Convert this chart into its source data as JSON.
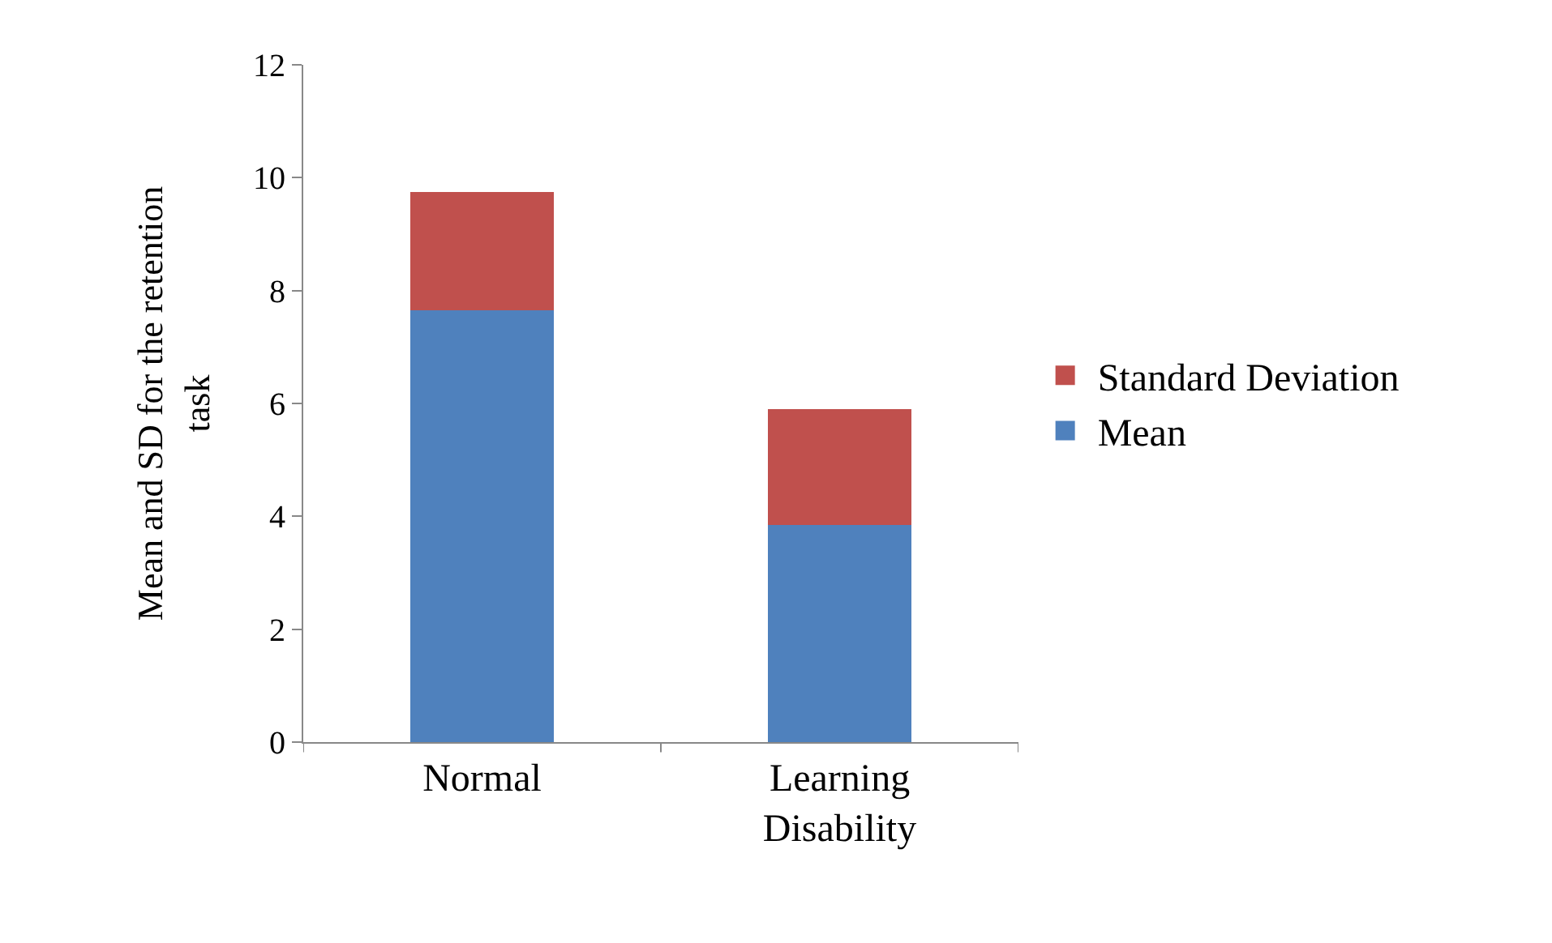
{
  "chart_data": {
    "type": "bar",
    "stacked": true,
    "ylabel": "Mean and SD for the retention task",
    "categories": [
      "Normal",
      "Learning Disability"
    ],
    "series": [
      {
        "name": "Mean",
        "color": "#4f81bd",
        "values": [
          7.65,
          3.85
        ]
      },
      {
        "name": "Standard Deviation",
        "color": "#c0504d",
        "values": [
          2.1,
          2.05
        ]
      }
    ],
    "ylim": [
      0,
      12
    ],
    "yticks": [
      0,
      2,
      4,
      6,
      8,
      10,
      12
    ],
    "legend": "right"
  }
}
